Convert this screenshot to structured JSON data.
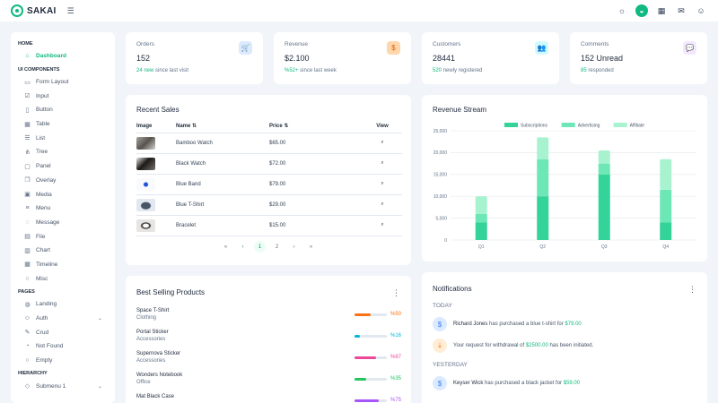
{
  "app": {
    "name": "SAKAI"
  },
  "sidebar": {
    "sections": [
      {
        "title": "HOME",
        "items": [
          {
            "label": "Dashboard",
            "icon": "home-icon",
            "glyph": "⌂",
            "active": true
          }
        ]
      },
      {
        "title": "UI COMPONENTS",
        "items": [
          {
            "label": "Form Layout",
            "icon": "id-card-icon",
            "glyph": "▭"
          },
          {
            "label": "Input",
            "icon": "check-square-icon",
            "glyph": "☑"
          },
          {
            "label": "Button",
            "icon": "mobile-icon",
            "glyph": "▯"
          },
          {
            "label": "Table",
            "icon": "table-icon",
            "glyph": "▦"
          },
          {
            "label": "List",
            "icon": "list-icon",
            "glyph": "☰"
          },
          {
            "label": "Tree",
            "icon": "share-icon",
            "glyph": "⋔"
          },
          {
            "label": "Panel",
            "icon": "tablet-icon",
            "glyph": "▢"
          },
          {
            "label": "Overlay",
            "icon": "clone-icon",
            "glyph": "❐"
          },
          {
            "label": "Media",
            "icon": "image-icon",
            "glyph": "▣"
          },
          {
            "label": "Menu",
            "icon": "bars-icon",
            "glyph": "≡"
          },
          {
            "label": "Message",
            "icon": "comment-icon",
            "glyph": "◌"
          },
          {
            "label": "File",
            "icon": "file-icon",
            "glyph": "▤"
          },
          {
            "label": "Chart",
            "icon": "chart-bar-icon",
            "glyph": "▥"
          },
          {
            "label": "Timeline",
            "icon": "calendar-icon",
            "glyph": "▦"
          },
          {
            "label": "Misc",
            "icon": "circle-icon",
            "glyph": "○"
          }
        ]
      },
      {
        "title": "PAGES",
        "items": [
          {
            "label": "Landing",
            "icon": "globe-icon",
            "glyph": "◍"
          },
          {
            "label": "Auth",
            "icon": "user-icon",
            "glyph": "☺",
            "chevron": "⌄"
          },
          {
            "label": "Crud",
            "icon": "pencil-icon",
            "glyph": "✎"
          },
          {
            "label": "Not Found",
            "icon": "exclamation-circle-icon",
            "glyph": "◔"
          },
          {
            "label": "Empty",
            "icon": "circle-off-icon",
            "glyph": "○"
          }
        ]
      },
      {
        "title": "HIERARCHY",
        "items": [
          {
            "label": "Submenu 1",
            "icon": "bookmark-icon",
            "glyph": "◇",
            "chevron": "⌄"
          }
        ]
      }
    ]
  },
  "stats": [
    {
      "title": "Orders",
      "value": "152",
      "highlight": "24 new",
      "suffix": " since last visit",
      "icon": "shopping-cart-icon",
      "glyph": "🛒",
      "bg": "#dbeafe",
      "fg": "#3b82f6"
    },
    {
      "title": "Revenue",
      "value": "$2.100",
      "highlight": "%52+",
      "suffix": " since last week",
      "icon": "dollar-icon",
      "glyph": "$",
      "bg": "#fed7aa",
      "fg": "#ea580c"
    },
    {
      "title": "Customers",
      "value": "28441",
      "highlight": "520",
      "suffix": " newly registered",
      "icon": "users-icon",
      "glyph": "👥",
      "bg": "#cffafe",
      "fg": "#0891b2"
    },
    {
      "title": "Comments",
      "value": "152 Unread",
      "highlight": "85",
      "suffix": " responded",
      "icon": "comment-icon",
      "glyph": "💬",
      "bg": "#f3e8ff",
      "fg": "#a855f7"
    }
  ],
  "recent_sales": {
    "title": "Recent Sales",
    "columns": {
      "image": "Image",
      "name": "Name",
      "price": "Price",
      "view": "View"
    },
    "rows": [
      {
        "name": "Bamboo Watch",
        "price": "$65.00"
      },
      {
        "name": "Black Watch",
        "price": "$72.00"
      },
      {
        "name": "Blue Band",
        "price": "$79.00"
      },
      {
        "name": "Blue T-Shirt",
        "price": "$29.00"
      },
      {
        "name": "Bracelet",
        "price": "$15.00"
      }
    ],
    "pager": {
      "first": "«",
      "prev": "‹",
      "pages": [
        "1",
        "2"
      ],
      "next": "›",
      "last": "»"
    }
  },
  "best_selling": {
    "title": "Best Selling Products",
    "items": [
      {
        "name": "Space T-Shirt",
        "category": "Clothing",
        "pct": 50,
        "label": "%50",
        "color": "#f97316"
      },
      {
        "name": "Portal Sticker",
        "category": "Accessories",
        "pct": 16,
        "label": "%16",
        "color": "#06b6d4"
      },
      {
        "name": "Supernova Sticker",
        "category": "Accessories",
        "pct": 67,
        "label": "%67",
        "color": "#ec4899"
      },
      {
        "name": "Wonders Notebook",
        "category": "Office",
        "pct": 35,
        "label": "%35",
        "color": "#22c55e"
      },
      {
        "name": "Mat Black Case",
        "category": "",
        "pct": 75,
        "label": "%75",
        "color": "#a855f7"
      }
    ]
  },
  "revenue_stream": {
    "title": "Revenue Stream",
    "chart_data": {
      "type": "bar",
      "stacked": true,
      "categories": [
        "Q1",
        "Q2",
        "Q3",
        "Q4"
      ],
      "series": [
        {
          "name": "Subscriptions",
          "values": [
            4000,
            10000,
            15000,
            4000
          ],
          "color": "#34d399"
        },
        {
          "name": "Advertising",
          "values": [
            2000,
            8500,
            2500,
            7500
          ],
          "color": "#6ee7b7"
        },
        {
          "name": "Affiliate",
          "values": [
            4000,
            5000,
            3000,
            7000
          ],
          "color": "#a7f3d0"
        }
      ],
      "ylim": [
        0,
        25000
      ],
      "yticks": [
        "0",
        "5,000",
        "10,000",
        "15,000",
        "20,000",
        "25,000"
      ],
      "grid": true,
      "legend": "top"
    }
  },
  "notifications": {
    "title": "Notifications",
    "groups": [
      {
        "label": "TODAY",
        "items": [
          {
            "icon": "dollar-icon",
            "glyph": "$",
            "bg": "#dbeafe",
            "fg": "#3b82f6",
            "who": "Richard Jones",
            "text": " has purchased a blue t-shirt for ",
            "amount": "$79.00",
            "tail": ""
          },
          {
            "icon": "download-icon",
            "glyph": "⤓",
            "bg": "#ffedd5",
            "fg": "#f97316",
            "who": "",
            "text": "Your request for withdrawal of ",
            "amount": "$2500.00",
            "tail": " has been initiated."
          }
        ]
      },
      {
        "label": "YESTERDAY",
        "items": [
          {
            "icon": "dollar-icon",
            "glyph": "$",
            "bg": "#dbeafe",
            "fg": "#3b82f6",
            "who": "Keyser Wick",
            "text": " has purchased a black jacket for ",
            "amount": "$59.00",
            "tail": ""
          }
        ]
      }
    ]
  }
}
